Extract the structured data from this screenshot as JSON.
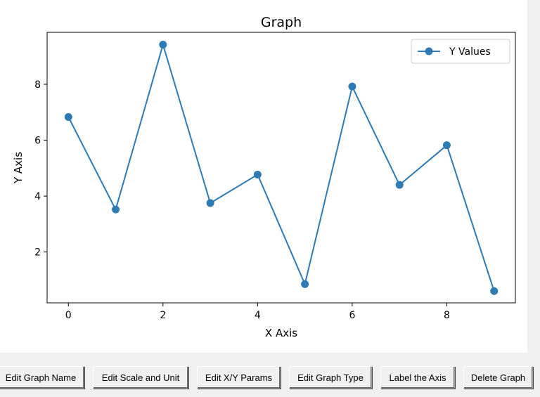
{
  "chart_data": {
    "type": "line",
    "title": "Graph",
    "xlabel": "X Axis",
    "ylabel": "Y Axis",
    "x": [
      0,
      1,
      2,
      3,
      4,
      5,
      6,
      7,
      8,
      9
    ],
    "series": [
      {
        "name": "Y Values",
        "values": [
          6.83,
          3.52,
          9.42,
          3.75,
          4.77,
          0.85,
          7.92,
          4.4,
          5.82,
          0.6
        ]
      }
    ],
    "xlim": [
      -0.45,
      9.45
    ],
    "ylim": [
      0.18,
      9.86
    ],
    "xticks": [
      0,
      2,
      4,
      6,
      8
    ],
    "yticks": [
      2,
      4,
      6,
      8
    ],
    "xtick_labels": [
      "0",
      "2",
      "4",
      "6",
      "8"
    ],
    "ytick_labels": [
      "2",
      "4",
      "6",
      "8"
    ],
    "grid": false,
    "legend_position": "top-right",
    "series_color": "#2e7ab5"
  },
  "toolbar": {
    "buttons": [
      {
        "label": "Edit Graph Name"
      },
      {
        "label": "Edit Scale and Unit"
      },
      {
        "label": "Edit X/Y Params"
      },
      {
        "label": "Edit Graph Type"
      },
      {
        "label": "Label the Axis"
      },
      {
        "label": "Delete Graph"
      }
    ]
  }
}
